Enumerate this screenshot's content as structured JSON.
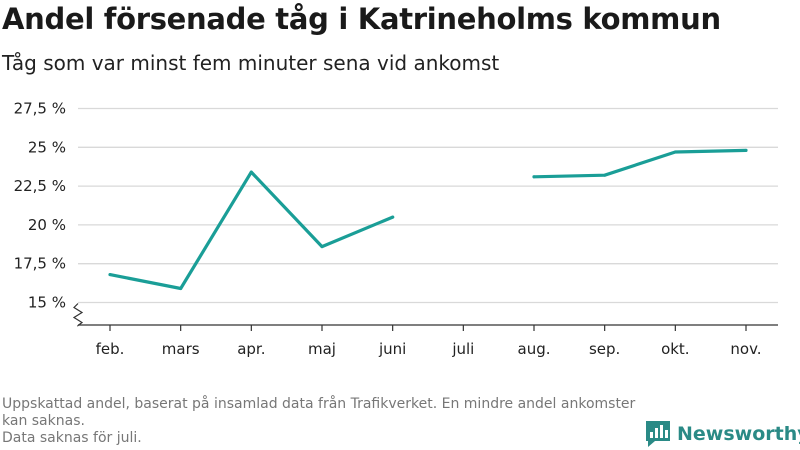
{
  "header": {
    "title": "Andel försenade tåg i Katrineholms kommun",
    "subtitle": "Tåg som var minst fem minuter sena vid ankomst"
  },
  "footer": {
    "note_line1": "Uppskattad andel, baserat på insamlad data från Trafikverket. En mindre andel ankomster kan saknas.",
    "note_line2": "Data saknas för juli.",
    "logo_text": "Newsworthy",
    "logo_icon": "bar-chart-badge-icon"
  },
  "colors": {
    "line": "#1a9e97",
    "grid": "#d9d9d9",
    "axis": "#333333",
    "logo": "#2a8a86"
  },
  "chart_data": {
    "type": "line",
    "title": "Andel försenade tåg i Katrineholms kommun",
    "subtitle": "Tåg som var minst fem minuter sena vid ankomst",
    "categories": [
      "feb.",
      "mars",
      "apr.",
      "maj",
      "juni",
      "juli",
      "aug.",
      "sep.",
      "okt.",
      "nov."
    ],
    "series": [
      {
        "values": [
          16.8,
          15.9,
          23.4,
          18.6,
          20.5,
          null,
          23.1,
          23.2,
          24.7,
          24.8
        ]
      }
    ],
    "y_ticks": [
      15,
      17.5,
      20,
      22.5,
      25,
      27.5
    ],
    "y_tick_labels": [
      "15 %",
      "17,5 %",
      "20 %",
      "22,5 %",
      "25 %",
      "27,5 %"
    ],
    "ylim": [
      15,
      27.5
    ],
    "y_axis_break": true,
    "grid": "horizontal",
    "xlabel": "",
    "ylabel": ""
  }
}
